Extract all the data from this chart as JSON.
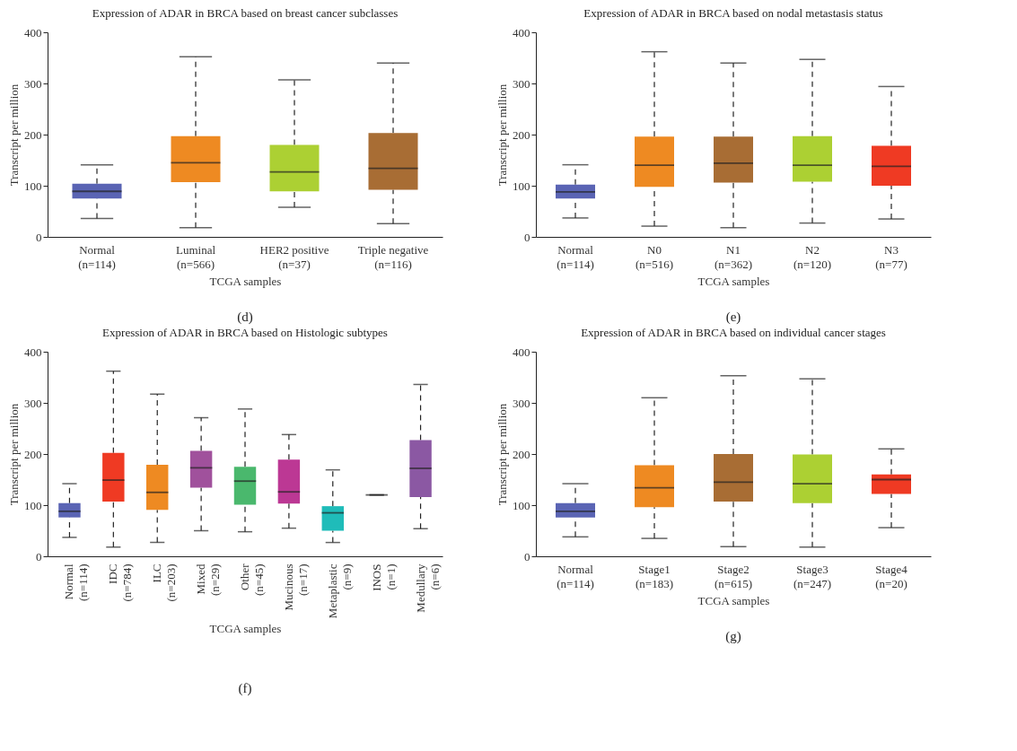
{
  "chart_data": [
    {
      "type": "box",
      "title": "Expression of ADAR in BRCA based on breast cancer subclasses",
      "xlabel": "TCGA samples",
      "ylabel": "Transcript per million",
      "categories": [
        "Normal (n=114)",
        "Luminal (n=566)",
        "HER2 positive (n=37)",
        "Triple negative (n=116)"
      ],
      "colors": [
        "#5a64b4",
        "#ee8a22",
        "#acd033",
        "#a86d34"
      ],
      "ylim": [
        0,
        400
      ],
      "yticks": [
        0,
        100,
        200,
        300,
        400
      ],
      "annotations": [
        "(d)"
      ],
      "boxes": [
        {
          "low": 36,
          "q1": 75,
          "median": 89,
          "q3": 104,
          "high": 141
        },
        {
          "low": 18,
          "q1": 107,
          "median": 145,
          "q3": 197,
          "high": 352
        },
        {
          "low": 58,
          "q1": 89,
          "median": 127,
          "q3": 180,
          "high": 307
        },
        {
          "low": 26,
          "q1": 92,
          "median": 134,
          "q3": 203,
          "high": 340
        }
      ]
    },
    {
      "type": "box",
      "title": "Expression of ADAR in BRCA based on nodal metastasis status",
      "xlabel": "TCGA samples",
      "ylabel": "Transcript per million",
      "categories": [
        "Normal (n=114)",
        "N0 (n=516)",
        "N1 (n=362)",
        "N2 (n=120)",
        "N3 (n=77)"
      ],
      "colors": [
        "#5a64b4",
        "#ee8a22",
        "#a86d34",
        "#acd033",
        "#ef3a23"
      ],
      "ylim": [
        0,
        400
      ],
      "yticks": [
        0,
        100,
        200,
        300,
        400
      ],
      "annotations": [
        "(e)"
      ],
      "boxes": [
        {
          "low": 37,
          "q1": 75,
          "median": 88,
          "q3": 102,
          "high": 141
        },
        {
          "low": 21,
          "q1": 98,
          "median": 140,
          "q3": 196,
          "high": 362
        },
        {
          "low": 18,
          "q1": 106,
          "median": 144,
          "q3": 196,
          "high": 340
        },
        {
          "low": 27,
          "q1": 108,
          "median": 140,
          "q3": 197,
          "high": 347
        },
        {
          "low": 35,
          "q1": 100,
          "median": 138,
          "q3": 178,
          "high": 294
        }
      ]
    },
    {
      "type": "box",
      "title": "Expression of ADAR in BRCA based on Histologic subtypes",
      "xlabel": "TCGA samples",
      "ylabel": "Transcript per million",
      "categories": [
        "Normal (n=114)",
        "IDC (n=784)",
        "ILC (n=203)",
        "Mixed (n=29)",
        "Other (n=45)",
        "Mucinous (n=17)",
        "Metaplastic (n=9)",
        "INOS (n=1)",
        "Medullary (n=6)"
      ],
      "colors": [
        "#5a64b4",
        "#ef3a23",
        "#ee8a22",
        "#a0519c",
        "#4ab86d",
        "#bc3894",
        "#1fbcb9",
        "#222222",
        "#8b58a3"
      ],
      "ylim": [
        0,
        400
      ],
      "yticks": [
        0,
        100,
        200,
        300,
        400
      ],
      "annotations": [
        "(f)"
      ],
      "boxes": [
        {
          "low": 37,
          "q1": 76,
          "median": 88,
          "q3": 104,
          "high": 142
        },
        {
          "low": 18,
          "q1": 107,
          "median": 149,
          "q3": 202,
          "high": 362
        },
        {
          "low": 27,
          "q1": 91,
          "median": 125,
          "q3": 179,
          "high": 317
        },
        {
          "low": 50,
          "q1": 134,
          "median": 173,
          "q3": 206,
          "high": 271
        },
        {
          "low": 48,
          "q1": 101,
          "median": 147,
          "q3": 175,
          "high": 288
        },
        {
          "low": 55,
          "q1": 103,
          "median": 126,
          "q3": 189,
          "high": 238
        },
        {
          "low": 27,
          "q1": 50,
          "median": 85,
          "q3": 98,
          "high": 169
        },
        {
          "low": 120,
          "q1": 120,
          "median": 120,
          "q3": 120,
          "high": 120
        },
        {
          "low": 54,
          "q1": 116,
          "median": 172,
          "q3": 227,
          "high": 336
        }
      ]
    },
    {
      "type": "box",
      "title": "Expression of ADAR in BRCA based on individual cancer stages",
      "xlabel": "TCGA samples",
      "ylabel": "Transcript per million",
      "categories": [
        "Normal (n=114)",
        "Stage1 (n=183)",
        "Stage2 (n=615)",
        "Stage3 (n=247)",
        "Stage4 (n=20)"
      ],
      "colors": [
        "#5a64b4",
        "#ee8a22",
        "#a86d34",
        "#acd033",
        "#ef3a23"
      ],
      "ylim": [
        0,
        400
      ],
      "yticks": [
        0,
        100,
        200,
        300,
        400
      ],
      "annotations": [
        "(g)"
      ],
      "boxes": [
        {
          "low": 38,
          "q1": 76,
          "median": 88,
          "q3": 104,
          "high": 142
        },
        {
          "low": 35,
          "q1": 96,
          "median": 134,
          "q3": 178,
          "high": 310
        },
        {
          "low": 19,
          "q1": 107,
          "median": 145,
          "q3": 200,
          "high": 353
        },
        {
          "low": 18,
          "q1": 104,
          "median": 142,
          "q3": 199,
          "high": 347
        },
        {
          "low": 56,
          "q1": 122,
          "median": 150,
          "q3": 160,
          "high": 210
        }
      ]
    }
  ]
}
